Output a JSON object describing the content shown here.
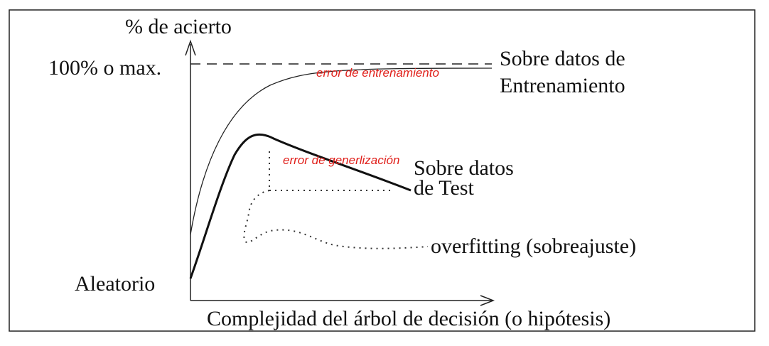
{
  "diagram": {
    "y_axis_label": "% de acierto",
    "y_max_label": "100% o max.",
    "y_min_label": "Aleatorio",
    "x_axis_label": "Complejidad del árbol de decisión (o hipótesis)",
    "training_curve_label": [
      "Sobre datos de",
      "Entrenamiento"
    ],
    "test_curve_label": [
      "Sobre datos",
      "de Test"
    ],
    "overfitting_label": "overfitting (sobreajuste)",
    "annotation_training_error": "error de entrenamiento",
    "annotation_generalization_error": "error de generlización"
  },
  "colors": {
    "annotation": "#e0201b",
    "ink": "#111111",
    "frame": "#222222"
  }
}
